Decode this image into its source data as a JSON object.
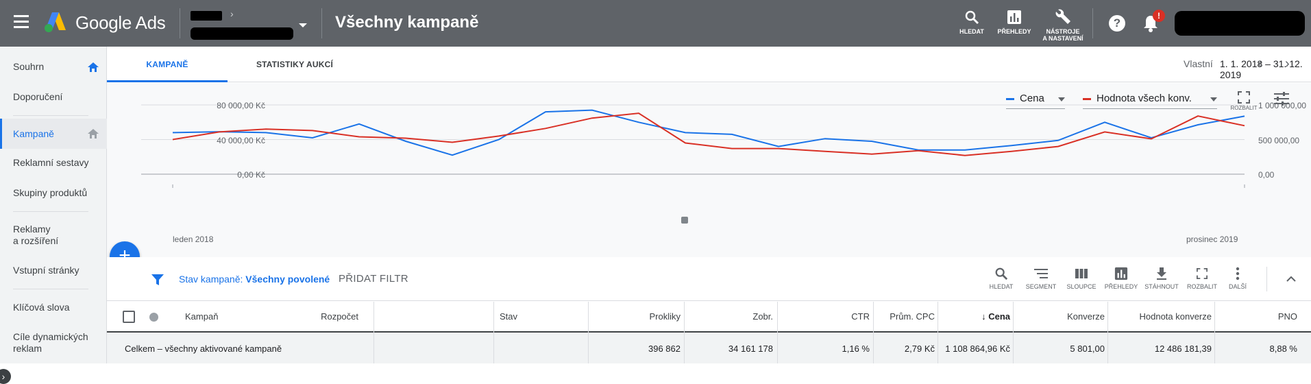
{
  "topbar": {
    "brand": "Google Ads",
    "page_title": "Všechny kampaně",
    "tools": [
      {
        "label": "HLEDAT",
        "icon": "search-icon"
      },
      {
        "label": "PŘEHLEDY",
        "icon": "reports-icon"
      },
      {
        "label": "NÁSTROJE",
        "label2": "A NASTAVENÍ",
        "icon": "wrench-icon"
      }
    ],
    "notification_badge": "!"
  },
  "sidebar": {
    "items": [
      {
        "label": "Souhrn"
      },
      {
        "label": "Doporučení"
      },
      {
        "label": "Kampaně"
      },
      {
        "label": "Reklamní sestavy"
      },
      {
        "label": "Skupiny produktů"
      },
      {
        "label": "Reklamy",
        "label2": "a rozšíření"
      },
      {
        "label": "Vstupní stránky"
      },
      {
        "label": "Klíčová slova"
      },
      {
        "label": "Cíle dynamických",
        "label2": "reklam"
      }
    ]
  },
  "tabs": [
    {
      "label": "KAMPANĚ",
      "active": true
    },
    {
      "label": "STATISTIKY AUKCÍ",
      "active": false
    }
  ],
  "date": {
    "label": "Vlastní",
    "range": "1. 1. 2018 – 31. 12. 2019"
  },
  "chart_controls": {
    "metric1": "Cena",
    "metric2": "Hodnota všech konv.",
    "expand_label": "ROZBALIT"
  },
  "colors": {
    "accent": "#1a73e8",
    "series1": "#1a73e8",
    "series2": "#d93025",
    "topbar": "#5f6368"
  },
  "chart_data": {
    "type": "line",
    "x": [
      "2018-01",
      "2018-02",
      "2018-03",
      "2018-04",
      "2018-05",
      "2018-06",
      "2018-07",
      "2018-08",
      "2018-09",
      "2018-10",
      "2018-11",
      "2018-12",
      "2019-01",
      "2019-02",
      "2019-03",
      "2019-04",
      "2019-05",
      "2019-06",
      "2019-07",
      "2019-08",
      "2019-09",
      "2019-10",
      "2019-11",
      "2019-12"
    ],
    "xlabel_start": "leden 2018",
    "xlabel_end": "prosinec 2019",
    "series": [
      {
        "name": "Cena",
        "axis": "left",
        "color": "#1a73e8",
        "values": [
          48000,
          49000,
          48000,
          42000,
          58000,
          38000,
          22000,
          40000,
          72000,
          74000,
          60000,
          48000,
          46000,
          32000,
          41000,
          38000,
          28000,
          28000,
          33000,
          39000,
          60000,
          42000,
          57000,
          67000
        ]
      },
      {
        "name": "Hodnota všech konv.",
        "axis": "right",
        "color": "#d93025",
        "values": [
          500000,
          610000,
          650000,
          630000,
          540000,
          520000,
          460000,
          550000,
          660000,
          810000,
          880000,
          450000,
          370000,
          370000,
          330000,
          290000,
          340000,
          270000,
          330000,
          400000,
          610000,
          510000,
          840000,
          700000
        ]
      }
    ],
    "y_left": {
      "ticks": [
        "80 000,00 Kč",
        "40 000,00 Kč",
        "0,00 Kč"
      ],
      "range": [
        0,
        80000
      ]
    },
    "y_right": {
      "ticks": [
        "1 000 000,00",
        "500 000,00",
        "0,00"
      ],
      "range": [
        0,
        1000000
      ]
    },
    "grid": true
  },
  "filter": {
    "prefix": "Stav kampaně: ",
    "value": "Všechny povolené",
    "add_filter": "PŘIDAT FILTR"
  },
  "table_tools": [
    {
      "label": "HLEDAT",
      "icon": "search-icon"
    },
    {
      "label": "SEGMENT",
      "icon": "segment-icon"
    },
    {
      "label": "SLOUPCE",
      "icon": "columns-icon"
    },
    {
      "label": "PŘEHLEDY",
      "icon": "reports-icon"
    },
    {
      "label": "STÁHNOUT",
      "icon": "download-icon"
    },
    {
      "label": "ROZBALIT",
      "icon": "fullscreen-icon"
    },
    {
      "label": "DALŠÍ",
      "icon": "more-icon"
    }
  ],
  "table": {
    "columns": [
      "Kampaň",
      "Rozpočet",
      "Stav",
      "Prokliky",
      "Zobr.",
      "CTR",
      "Prům. CPC",
      "Cena",
      "Konverze",
      "Hodnota konverze",
      "PNO"
    ],
    "sort_arrow": "↓",
    "total_row": {
      "label": "Celkem – všechny aktivované kampaně",
      "prokliky": "396 862",
      "zobr": "34 161 178",
      "ctr": "1,16 %",
      "cpc": "2,79 Kč",
      "cena": "1 108 864,96 Kč",
      "konverze": "5 801,00",
      "hodnota": "12 486 181,39",
      "pno": "8,88 %"
    }
  }
}
